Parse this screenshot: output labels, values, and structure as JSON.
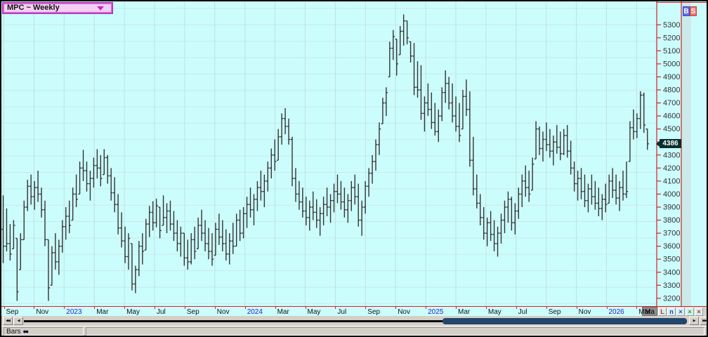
{
  "window_title": "MPC ~ Weekly",
  "symbol_selector": {
    "label": "MPC ~ Weekly"
  },
  "trade_buttons": {
    "buy_label": "B",
    "sell_label": "S"
  },
  "price_axis": {
    "current_price": "4386"
  },
  "time_axis": {
    "labels": [
      "Sep",
      "Nov",
      "2023",
      "Mar",
      "May",
      "Jul",
      "Sep",
      "Nov",
      "2024",
      "Mar",
      "May",
      "Jul",
      "Sep",
      "Nov",
      "2025",
      "Mar",
      "May",
      "Jul",
      "Sep",
      "Nov",
      "2026",
      "Mar"
    ],
    "year_indices": [
      2,
      8,
      14,
      20
    ],
    "highlighted_label": "Ma"
  },
  "corner_buttons": [
    {
      "name": "scale-linear-button",
      "glyph": "L",
      "color": "#cc2222"
    },
    {
      "name": "scale-log-button",
      "glyph": "n",
      "color": "#2244cc"
    },
    {
      "name": "close-blue-button",
      "glyph": "×",
      "color": "#2244cc"
    },
    {
      "name": "close-green-button",
      "glyph": "×",
      "color": "#22a022"
    },
    {
      "name": "close-red-button",
      "glyph": "×",
      "color": "#cc2222"
    }
  ],
  "scrollbar": {
    "left_far_label": "◀◀",
    "left_label": "◀",
    "right_label": "▶",
    "right_far_label": "▶▶"
  },
  "status_bar": {
    "label": "Bars",
    "dots": "●●"
  },
  "colors": {
    "chart_bg": "#ccfdfd",
    "grid_h": "#c9e8e8",
    "grid_v": "#bfe0e0",
    "axis_red": "#d22222",
    "bar": "#333333",
    "scale_strip": "#cdeaea",
    "price_label": "#333333",
    "year_label": "#2222cc",
    "cur_price_bg": "#06302c",
    "thumb": "#24466b"
  },
  "chart_data": {
    "type": "ohlc-bar",
    "title": "MPC ~ Weekly",
    "timeframe": "Weekly",
    "ylim": [
      3150,
      5420
    ],
    "y_ticks": [
      5300,
      5200,
      5100,
      5000,
      4900,
      4800,
      4700,
      4600,
      4500,
      4400,
      4300,
      4200,
      4100,
      4000,
      3900,
      3800,
      3700,
      3600,
      3500,
      3400,
      3300,
      3200
    ],
    "x_tick_labels": [
      "Sep",
      "Nov",
      "2023",
      "Mar",
      "May",
      "Jul",
      "Sep",
      "Nov",
      "2024",
      "Mar",
      "May",
      "Jul",
      "Sep",
      "Nov",
      "2025",
      "Mar",
      "May",
      "Jul",
      "Sep",
      "Nov",
      "2026",
      "Mar",
      "Ma"
    ],
    "last_price": 4386,
    "grid": true,
    "bars_hlc": [
      [
        3990,
        3470,
        3600
      ],
      [
        3890,
        3560,
        3620
      ],
      [
        3770,
        3490,
        3540
      ],
      [
        3800,
        3580,
        3760
      ],
      [
        3660,
        3180,
        3250
      ],
      [
        3700,
        3420,
        3650
      ],
      [
        3950,
        3650,
        3900
      ],
      [
        4110,
        3870,
        4060
      ],
      [
        4150,
        3920,
        3980
      ],
      [
        4100,
        3880,
        4050
      ],
      [
        4180,
        3940,
        4000
      ],
      [
        4050,
        3820,
        3880
      ],
      [
        3950,
        3600,
        3650
      ],
      [
        3650,
        3180,
        3280
      ],
      [
        3600,
        3300,
        3550
      ],
      [
        3700,
        3420,
        3480
      ],
      [
        3650,
        3380,
        3600
      ],
      [
        3800,
        3550,
        3750
      ],
      [
        3900,
        3650,
        3830
      ],
      [
        3950,
        3700,
        3760
      ],
      [
        4050,
        3800,
        4000
      ],
      [
        4150,
        3900,
        3960
      ],
      [
        4250,
        4000,
        4200
      ],
      [
        4340,
        4100,
        4180
      ],
      [
        4250,
        4020,
        4080
      ],
      [
        4180,
        3950,
        4120
      ],
      [
        4280,
        4050,
        4220
      ],
      [
        4345,
        4120,
        4200
      ],
      [
        4300,
        4060,
        4120
      ],
      [
        4345,
        4150,
        4280
      ],
      [
        4300,
        4080,
        4140
      ],
      [
        4200,
        3950,
        4010
      ],
      [
        4130,
        3860,
        3920
      ],
      [
        4000,
        3690,
        3740
      ],
      [
        3860,
        3590,
        3640
      ],
      [
        3750,
        3470,
        3520
      ],
      [
        3700,
        3420,
        3660
      ],
      [
        3620,
        3260,
        3310
      ],
      [
        3450,
        3240,
        3420
      ],
      [
        3640,
        3370,
        3600
      ],
      [
        3700,
        3460,
        3560
      ],
      [
        3810,
        3570,
        3770
      ],
      [
        3910,
        3670,
        3860
      ],
      [
        3945,
        3720,
        3780
      ],
      [
        3965,
        3745,
        3910
      ],
      [
        3900,
        3660,
        3720
      ],
      [
        3990,
        3760,
        3820
      ],
      [
        3930,
        3700,
        3870
      ],
      [
        3950,
        3720,
        3770
      ],
      [
        3870,
        3640,
        3700
      ],
      [
        3800,
        3560,
        3620
      ],
      [
        3750,
        3520,
        3700
      ],
      [
        3700,
        3450,
        3510
      ],
      [
        3650,
        3420,
        3480
      ],
      [
        3700,
        3460,
        3650
      ],
      [
        3750,
        3500,
        3560
      ],
      [
        3820,
        3580,
        3760
      ],
      [
        3880,
        3640,
        3700
      ],
      [
        3800,
        3560,
        3620
      ],
      [
        3740,
        3500,
        3560
      ],
      [
        3700,
        3450,
        3500
      ],
      [
        3780,
        3530,
        3730
      ],
      [
        3850,
        3610,
        3670
      ],
      [
        3800,
        3560,
        3620
      ],
      [
        3730,
        3490,
        3540
      ],
      [
        3700,
        3460,
        3640
      ],
      [
        3780,
        3540,
        3600
      ],
      [
        3850,
        3600,
        3800
      ],
      [
        3880,
        3640,
        3700
      ],
      [
        3900,
        3660,
        3850
      ],
      [
        3980,
        3740,
        3920
      ],
      [
        4050,
        3820,
        3880
      ],
      [
        4000,
        3760,
        3960
      ],
      [
        4100,
        3870,
        4050
      ],
      [
        4180,
        3950,
        4020
      ],
      [
        4150,
        3900,
        4100
      ],
      [
        4250,
        4020,
        4200
      ],
      [
        4350,
        4120,
        4300
      ],
      [
        4420,
        4180,
        4250
      ],
      [
        4500,
        4260,
        4440
      ],
      [
        4620,
        4380,
        4580
      ],
      [
        4660,
        4460,
        4520
      ],
      [
        4580,
        4380,
        4420
      ],
      [
        4440,
        4060,
        4120
      ],
      [
        4200,
        3940,
        4000
      ],
      [
        4100,
        3880,
        3940
      ],
      [
        4050,
        3820,
        3870
      ],
      [
        3980,
        3760,
        3820
      ],
      [
        3950,
        3720,
        3900
      ],
      [
        4020,
        3800,
        3860
      ],
      [
        3960,
        3740,
        3800
      ],
      [
        3900,
        3680,
        3850
      ],
      [
        3980,
        3760,
        3920
      ],
      [
        4050,
        3830,
        3900
      ],
      [
        4000,
        3780,
        3950
      ],
      [
        4080,
        3860,
        4020
      ],
      [
        4150,
        3930,
        4000
      ],
      [
        4100,
        3880,
        3940
      ],
      [
        4050,
        3820,
        3880
      ],
      [
        4000,
        3780,
        3950
      ],
      [
        4100,
        3870,
        4050
      ],
      [
        4150,
        3920,
        3980
      ],
      [
        4080,
        3750,
        3800
      ],
      [
        3950,
        3680,
        3900
      ],
      [
        4100,
        3850,
        4060
      ],
      [
        4200,
        3980,
        4160
      ],
      [
        4300,
        4080,
        4250
      ],
      [
        4420,
        4180,
        4380
      ],
      [
        4550,
        4300,
        4500
      ],
      [
        4740,
        4540,
        4700
      ],
      [
        4820,
        4600,
        4780
      ],
      [
        5170,
        4900,
        5120
      ],
      [
        5260,
        5030,
        5210
      ],
      [
        5190,
        4910,
        5000
      ],
      [
        5290,
        5070,
        5250
      ],
      [
        5380,
        5140,
        5330
      ],
      [
        5330,
        5150,
        5200
      ],
      [
        5170,
        5010,
        5060
      ],
      [
        5160,
        4760,
        4820
      ],
      [
        5020,
        4740,
        4800
      ],
      [
        4990,
        4570,
        4620
      ],
      [
        4750,
        4480,
        4700
      ],
      [
        4850,
        4600,
        4650
      ],
      [
        4780,
        4500,
        4550
      ],
      [
        4700,
        4450,
        4480
      ],
      [
        4650,
        4400,
        4600
      ],
      [
        4820,
        4560,
        4780
      ],
      [
        4950,
        4700,
        4850
      ],
      [
        4900,
        4650,
        4700
      ],
      [
        4850,
        4550,
        4600
      ],
      [
        4750,
        4480,
        4520
      ],
      [
        4700,
        4400,
        4450
      ],
      [
        4800,
        4500,
        4750
      ],
      [
        4880,
        4600,
        4650
      ],
      [
        4790,
        4210,
        4260
      ],
      [
        4440,
        3990,
        4040
      ],
      [
        4150,
        3890,
        3930
      ],
      [
        4000,
        3760,
        3820
      ],
      [
        3900,
        3650,
        3700
      ],
      [
        3820,
        3600,
        3780
      ],
      [
        3870,
        3640,
        3690
      ],
      [
        3800,
        3560,
        3620
      ],
      [
        3750,
        3520,
        3700
      ],
      [
        3850,
        3620,
        3800
      ],
      [
        3950,
        3700,
        3900
      ],
      [
        4020,
        3780,
        3960
      ],
      [
        3980,
        3720,
        3780
      ],
      [
        3930,
        3690,
        3870
      ],
      [
        4050,
        3810,
        4000
      ],
      [
        4150,
        3900,
        4100
      ],
      [
        4220,
        3980,
        4050
      ],
      [
        4180,
        3940,
        4000
      ],
      [
        4280,
        4030,
        4230
      ],
      [
        4560,
        4270,
        4500
      ],
      [
        4520,
        4300,
        4350
      ],
      [
        4480,
        4250,
        4420
      ],
      [
        4550,
        4330,
        4380
      ],
      [
        4500,
        4280,
        4330
      ],
      [
        4450,
        4220,
        4400
      ],
      [
        4530,
        4310,
        4360
      ],
      [
        4480,
        4260,
        4310
      ],
      [
        4500,
        4300,
        4450
      ],
      [
        4530,
        4280,
        4330
      ],
      [
        4410,
        4150,
        4200
      ],
      [
        4250,
        4020,
        4080
      ],
      [
        4180,
        3950,
        4120
      ],
      [
        4200,
        3960,
        4020
      ],
      [
        4150,
        3900,
        3950
      ],
      [
        4080,
        3860,
        4040
      ],
      [
        4150,
        3920,
        3980
      ],
      [
        4100,
        3880,
        3930
      ],
      [
        4050,
        3830,
        3890
      ],
      [
        4000,
        3800,
        3960
      ],
      [
        4080,
        3860,
        3920
      ],
      [
        4150,
        3930,
        4100
      ],
      [
        4200,
        3970,
        4030
      ],
      [
        4150,
        3920,
        3970
      ],
      [
        4100,
        3870,
        4050
      ],
      [
        4180,
        3950,
        4000
      ],
      [
        4250,
        3970,
        4020
      ],
      [
        4560,
        4250,
        4510
      ],
      [
        4650,
        4420,
        4480
      ],
      [
        4620,
        4430,
        4580
      ],
      [
        4790,
        4500,
        4760
      ],
      [
        4780,
        4470,
        4530
      ],
      [
        4500,
        4340,
        4386
      ]
    ]
  }
}
